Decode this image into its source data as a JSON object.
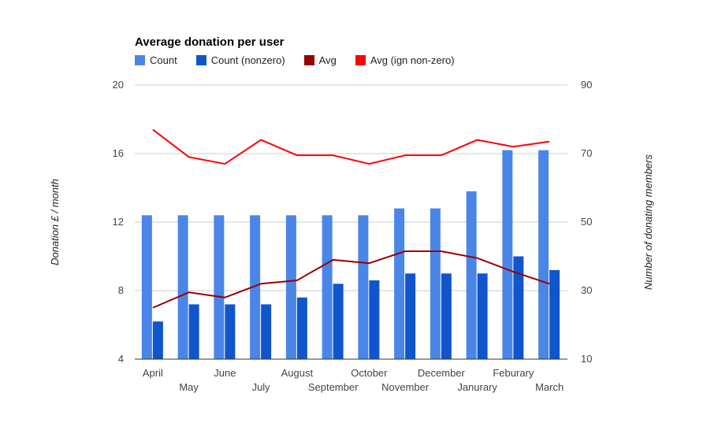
{
  "chart_data": {
    "type": "bar",
    "title": "Average donation per user",
    "categories": [
      "April",
      "May",
      "June",
      "July",
      "August",
      "September",
      "October",
      "November",
      "December",
      "Janurary",
      "Feburary",
      "March"
    ],
    "series": [
      {
        "name": "Count",
        "kind": "bar",
        "axis": "right",
        "color": "#4a86e8",
        "values": [
          52,
          52,
          52,
          52,
          52,
          52,
          52,
          54,
          54,
          59,
          71,
          71
        ]
      },
      {
        "name": "Count (nonzero)",
        "kind": "bar",
        "axis": "right",
        "color": "#1155cc",
        "values": [
          21,
          26,
          26,
          26,
          28,
          32,
          33,
          35,
          35,
          35,
          40,
          36
        ]
      },
      {
        "name": "Avg",
        "kind": "line",
        "axis": "left",
        "color": "#990000",
        "values": [
          7.0,
          7.9,
          7.6,
          8.4,
          8.6,
          9.8,
          9.6,
          10.3,
          10.3,
          9.9,
          9.1,
          8.4
        ]
      },
      {
        "name": "Avg (ign non-zero)",
        "kind": "line",
        "axis": "left",
        "color": "#ff0000",
        "values": [
          17.4,
          15.8,
          15.4,
          16.8,
          15.9,
          15.9,
          15.4,
          15.9,
          15.9,
          16.8,
          16.4,
          16.7
        ]
      }
    ],
    "ylabel": "Donation £ / month",
    "ylabel_right": "Number of donating members",
    "ylim": [
      4,
      20
    ],
    "ylim_right": [
      10,
      90
    ],
    "yticks": [
      "20",
      "16",
      "12",
      "8",
      "4"
    ],
    "yticks_right": [
      "90",
      "70",
      "50",
      "30",
      "10"
    ],
    "legend_position": "top-left",
    "grid": true
  }
}
